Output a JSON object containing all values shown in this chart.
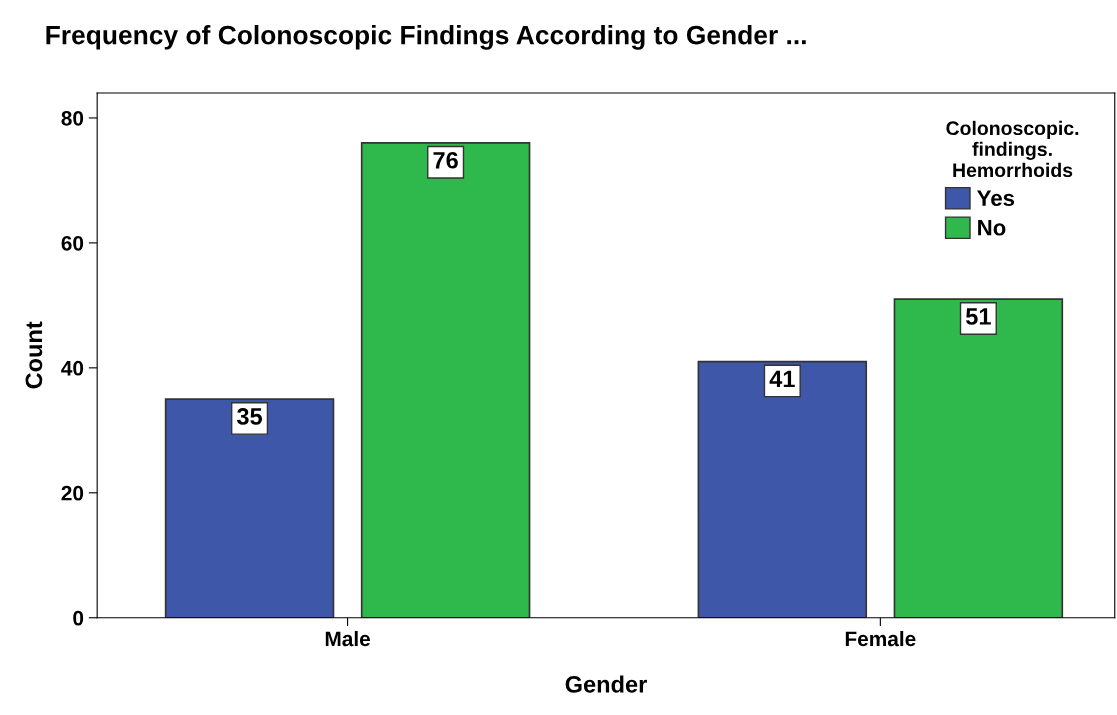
{
  "chart_data": {
    "type": "bar",
    "title": "Frequency of Colonoscopic Findings According to Gender ...",
    "xlabel": "Gender",
    "ylabel": "Count",
    "categories": [
      "Male",
      "Female"
    ],
    "series": [
      {
        "name": "Yes",
        "color": "#3f57a8",
        "values": [
          35,
          41
        ]
      },
      {
        "name": "No",
        "color": "#2fb84b",
        "values": [
          76,
          51
        ]
      }
    ],
    "legend_title": "Colonoscopic.\nfindings.\nHemorrhoids",
    "legend": "top right",
    "ylim": [
      0,
      84
    ],
    "yticks": [
      0,
      20,
      40,
      60,
      80
    ],
    "data_labels": true,
    "grid": false
  }
}
